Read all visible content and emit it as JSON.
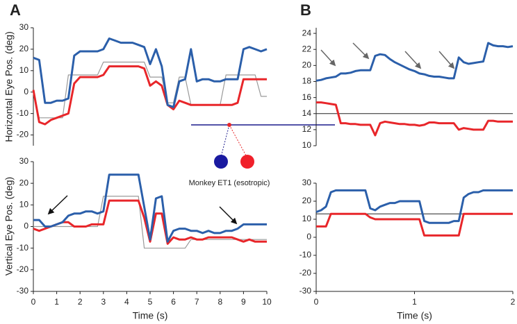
{
  "chart_data": [
    {
      "type": "line",
      "panel": "A",
      "ylabel": "Horizontal Eye Pos. (deg)",
      "annotation": "Monkey ET1 (esotropic)",
      "x": [
        0,
        0.25,
        0.5,
        0.75,
        1,
        1.25,
        1.5,
        1.75,
        2,
        2.25,
        2.5,
        2.75,
        3,
        3.25,
        3.5,
        3.75,
        4,
        4.25,
        4.5,
        4.75,
        5,
        5.25,
        5.5,
        5.75,
        6,
        6.25,
        6.5,
        6.75,
        7,
        7.25,
        7.5,
        7.75,
        8,
        8.25,
        8.5,
        8.75,
        9,
        9.25,
        9.5,
        9.75,
        10
      ],
      "xlim": [
        0,
        10
      ],
      "ylim": [
        -25,
        30
      ],
      "yticks": [
        -20,
        -10,
        0,
        10,
        20,
        30
      ],
      "series": [
        {
          "color": "#999999",
          "values": [
            0,
            -12,
            -12,
            -12,
            -12,
            -12,
            8,
            8,
            8,
            8,
            8,
            8,
            14,
            14,
            14,
            14,
            14,
            14,
            14,
            14,
            7,
            7,
            7,
            -5,
            -5,
            7,
            7,
            -6,
            -6,
            -6,
            -6,
            -6,
            -6,
            8,
            8,
            8,
            8,
            8,
            8,
            -2,
            -2
          ]
        },
        {
          "color": "#e8262a",
          "values": [
            1,
            -14,
            -15,
            -13,
            -12,
            -11,
            -10,
            4,
            7,
            7,
            7,
            7,
            8,
            12,
            12,
            12,
            12,
            12,
            12,
            11,
            3,
            5,
            3,
            -6,
            -8,
            -4,
            -5,
            -6,
            -6,
            -6,
            -6,
            -6,
            -6,
            -6,
            -6,
            -5,
            6,
            6,
            6,
            6,
            6
          ]
        },
        {
          "color": "#2b5faa",
          "values": [
            16,
            15,
            -5,
            -5,
            -4,
            -4,
            -3,
            17,
            19,
            19,
            19,
            19,
            20,
            25,
            24,
            23,
            23,
            23,
            22,
            21,
            13,
            20,
            12,
            -6,
            -7,
            5,
            6,
            20,
            5,
            6,
            6,
            5,
            5,
            6,
            6,
            6,
            20,
            21,
            20,
            19,
            20
          ]
        }
      ]
    },
    {
      "type": "line",
      "ylabel": "Vertical Eye Pos. (deg)",
      "xlabel": "Time (s)",
      "x": [
        0,
        0.25,
        0.5,
        0.75,
        1,
        1.25,
        1.5,
        1.75,
        2,
        2.25,
        2.5,
        2.75,
        3,
        3.25,
        3.5,
        3.75,
        4,
        4.25,
        4.5,
        4.75,
        5,
        5.25,
        5.5,
        5.75,
        6,
        6.25,
        6.5,
        6.75,
        7,
        7.25,
        7.5,
        7.75,
        8,
        8.25,
        8.5,
        8.75,
        9,
        9.25,
        9.5,
        9.75,
        10
      ],
      "xlim": [
        0,
        10
      ],
      "xticks": [
        0,
        1,
        2,
        3,
        4,
        5,
        6,
        7,
        8,
        9,
        10
      ],
      "ylim": [
        -30,
        30
      ],
      "yticks": [
        -30,
        -20,
        -10,
        0,
        10,
        20,
        30
      ],
      "series": [
        {
          "color": "#999999",
          "values": [
            0,
            0,
            0,
            0,
            0,
            0,
            0,
            0,
            0,
            0,
            0,
            0,
            14,
            14,
            14,
            14,
            14,
            14,
            14,
            -10,
            -10,
            -10,
            -10,
            -10,
            -10,
            -10,
            -10,
            -6,
            -6,
            -6,
            -6,
            -6,
            -6,
            -6,
            -6,
            -6,
            -6,
            -6,
            -6,
            -6,
            -6
          ]
        },
        {
          "color": "#e8262a",
          "values": [
            -1,
            -2,
            -1,
            0,
            1,
            2,
            2,
            0,
            0,
            0,
            1,
            1,
            1,
            12,
            12,
            12,
            12,
            12,
            12,
            4,
            -7,
            6,
            6,
            -8,
            -5,
            -6,
            -6,
            -5,
            -6,
            -6,
            -5,
            -5,
            -5,
            -5,
            -5,
            -6,
            -7,
            -6,
            -7,
            -7,
            -7
          ]
        },
        {
          "color": "#2b5faa",
          "values": [
            3,
            3,
            0,
            0,
            1,
            2,
            5,
            6,
            6,
            7,
            7,
            6,
            7,
            24,
            24,
            24,
            24,
            24,
            24,
            9,
            -6,
            13,
            14,
            -7,
            -2,
            -1,
            -1,
            -2,
            -2,
            -3,
            -2,
            -3,
            -3,
            -2,
            -2,
            -1,
            1,
            1,
            1,
            1,
            1
          ]
        }
      ]
    },
    {
      "type": "line",
      "panel": "B",
      "x": [
        0,
        0.05,
        0.1,
        0.15,
        0.2,
        0.25,
        0.3,
        0.35,
        0.4,
        0.45,
        0.5,
        0.55,
        0.6,
        0.65,
        0.7,
        0.75,
        0.8,
        0.85,
        0.9,
        0.95,
        1,
        1.05,
        1.1,
        1.15,
        1.2,
        1.25,
        1.3,
        1.35,
        1.4,
        1.45,
        1.5,
        1.55,
        1.6,
        1.65,
        1.7,
        1.75,
        1.8,
        1.85,
        1.9,
        1.95,
        2
      ],
      "xlim": [
        0,
        2
      ],
      "ylim": [
        10,
        24.7
      ],
      "yticks": [
        10,
        12,
        14,
        16,
        18,
        20,
        22,
        24
      ],
      "hline": 14,
      "series": [
        {
          "color": "#e8262a",
          "values": [
            15.4,
            15.4,
            15.3,
            15.2,
            15.1,
            12.8,
            12.8,
            12.7,
            12.7,
            12.6,
            12.6,
            12.6,
            11.3,
            12.8,
            13,
            12.9,
            12.8,
            12.7,
            12.7,
            12.6,
            12.6,
            12.5,
            12.6,
            12.9,
            12.9,
            12.8,
            12.8,
            12.8,
            12.8,
            12,
            12.2,
            12.1,
            12,
            12,
            12,
            13.1,
            13.1,
            13,
            13,
            13,
            13
          ]
        },
        {
          "color": "#2b5faa",
          "values": [
            18.1,
            18.2,
            18.4,
            18.5,
            18.6,
            19,
            19,
            19.1,
            19.3,
            19.4,
            19.4,
            19.4,
            21.2,
            21.4,
            21.3,
            20.8,
            20.4,
            20.1,
            19.8,
            19.5,
            19.3,
            19,
            18.9,
            18.7,
            18.6,
            18.6,
            18.5,
            18.4,
            18.4,
            21,
            20.4,
            20.2,
            20.3,
            20.4,
            20.5,
            22.8,
            22.5,
            22.4,
            22.4,
            22.3,
            22.4
          ]
        }
      ]
    },
    {
      "type": "line",
      "xlabel": "Time (s)",
      "x": [
        0,
        0.05,
        0.1,
        0.15,
        0.2,
        0.25,
        0.3,
        0.35,
        0.4,
        0.45,
        0.5,
        0.55,
        0.6,
        0.65,
        0.7,
        0.75,
        0.8,
        0.85,
        0.9,
        0.95,
        1,
        1.05,
        1.1,
        1.15,
        1.2,
        1.25,
        1.3,
        1.35,
        1.4,
        1.45,
        1.5,
        1.55,
        1.6,
        1.65,
        1.7,
        1.75,
        1.8,
        1.85,
        1.9,
        1.95,
        2
      ],
      "xlim": [
        0,
        2
      ],
      "xticks": [
        0,
        1,
        2
      ],
      "ylim": [
        -30,
        30
      ],
      "yticks": [
        -30,
        -20,
        -10,
        0,
        10,
        20,
        30
      ],
      "hline": 13,
      "series": [
        {
          "color": "#e8262a",
          "values": [
            6,
            6,
            6,
            13,
            13,
            13,
            13,
            13,
            13,
            13,
            13,
            11,
            10,
            10,
            10,
            10,
            10,
            10,
            10,
            10,
            10,
            10,
            1,
            1,
            1,
            1,
            1,
            1,
            1,
            1,
            13,
            13,
            13,
            13,
            13,
            13,
            13,
            13,
            13,
            13,
            13
          ]
        },
        {
          "color": "#2b5faa",
          "values": [
            14,
            15,
            17,
            25,
            26,
            26,
            26,
            26,
            26,
            26,
            26,
            16,
            15,
            17,
            18,
            19,
            19,
            20,
            20,
            20,
            20,
            20,
            9,
            8,
            8,
            8,
            8,
            8,
            9,
            9,
            22,
            24,
            25,
            25,
            26,
            26,
            26,
            26,
            26,
            26,
            26
          ]
        }
      ]
    }
  ]
}
